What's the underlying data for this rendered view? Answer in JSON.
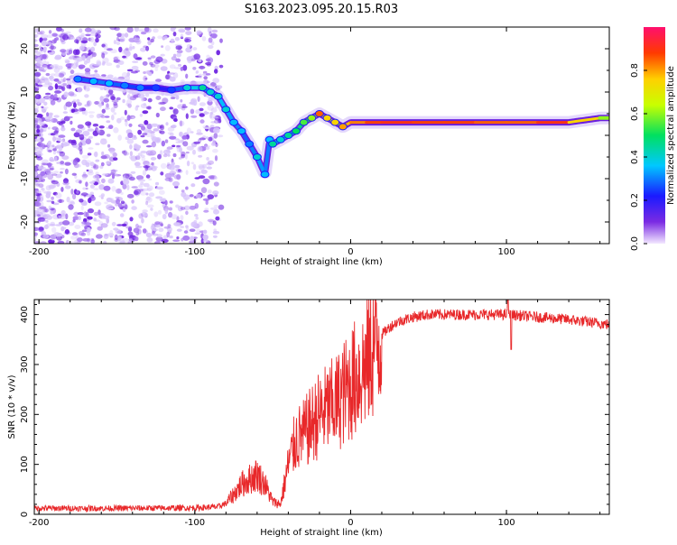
{
  "title": "S163.2023.095.20.15.R03",
  "colors": {
    "snr_line": "#e8282a",
    "ridge_high": "#e8282a",
    "scatter": "#7b2be3"
  },
  "chart_data": [
    {
      "type": "heatmap",
      "name": "spectrogram",
      "xlabel": "Height of straight line (km)",
      "ylabel": "Frequency (Hz)",
      "xlim": [
        -203,
        166
      ],
      "ylim": [
        -25,
        25
      ],
      "xticks": [
        -200,
        -100,
        0,
        100
      ],
      "yticks": [
        20,
        10,
        0,
        -10,
        -20
      ],
      "xtick_labels": [
        "-200",
        "-100",
        "0",
        "100"
      ],
      "ytick_labels": [
        "20",
        "10",
        "0",
        "-10",
        "-20"
      ],
      "ridge": {
        "x": [
          -175,
          -165,
          -155,
          -145,
          -135,
          -125,
          -115,
          -105,
          -95,
          -90,
          -85,
          -80,
          -75,
          -70,
          -65,
          -60,
          -55,
          -52,
          -50,
          -45,
          -40,
          -35,
          -30,
          -25,
          -20,
          -15,
          -10,
          -5,
          0,
          10,
          20,
          40,
          60,
          80,
          100,
          120,
          140,
          160,
          166
        ],
        "y": [
          13,
          12.5,
          12,
          11.5,
          11,
          11,
          10.5,
          11,
          11,
          10,
          9,
          6,
          3,
          1,
          -2,
          -5,
          -9,
          -1,
          -2,
          -1,
          0,
          1,
          3,
          4,
          5,
          4,
          3,
          2,
          3,
          3,
          3,
          3,
          3,
          3,
          3,
          3,
          3,
          4,
          4
        ],
        "amplitude": [
          0.25,
          0.3,
          0.3,
          0.25,
          0.25,
          0.2,
          0.2,
          0.35,
          0.4,
          0.35,
          0.35,
          0.35,
          0.3,
          0.3,
          0.25,
          0.35,
          0.3,
          0.3,
          0.4,
          0.35,
          0.4,
          0.45,
          0.5,
          0.55,
          0.8,
          0.7,
          0.7,
          0.75,
          0.8,
          0.85,
          0.9,
          0.9,
          0.85,
          0.9,
          0.8,
          0.9,
          0.9,
          0.6,
          0.6
        ]
      },
      "colorbar": {
        "label": "Normalized spectral amplitude",
        "range": [
          0,
          1
        ],
        "ticks": [
          0.0,
          0.2,
          0.4,
          0.6,
          0.8
        ],
        "tick_labels": [
          "0.0",
          "0.2",
          "0.4",
          "0.6",
          "0.8"
        ]
      }
    },
    {
      "type": "line",
      "name": "snr",
      "xlabel": "Height of straight line (km)",
      "ylabel": "SNR (10 * v/v)",
      "xlim": [
        -203,
        166
      ],
      "ylim": [
        0,
        430
      ],
      "xticks": [
        -200,
        -100,
        0,
        100
      ],
      "yticks": [
        0,
        100,
        200,
        300,
        400
      ],
      "xtick_labels": [
        "-200",
        "-100",
        "0",
        "100"
      ],
      "ytick_labels": [
        "0",
        "100",
        "200",
        "300",
        "400"
      ],
      "trend": {
        "x": [
          -203,
          -150,
          -100,
          -85,
          -80,
          -75,
          -70,
          -65,
          -60,
          -55,
          -50,
          -45,
          -40,
          -35,
          -30,
          -25,
          -20,
          -15,
          -10,
          -5,
          0,
          5,
          10,
          15,
          20,
          25,
          30,
          40,
          50,
          60,
          80,
          100,
          120,
          140,
          166
        ],
        "y": [
          12,
          12,
          13,
          15,
          22,
          40,
          60,
          70,
          80,
          60,
          25,
          20,
          100,
          150,
          160,
          180,
          200,
          210,
          220,
          240,
          260,
          280,
          300,
          340,
          360,
          375,
          385,
          395,
          400,
          400,
          400,
          400,
          395,
          390,
          380
        ]
      }
    }
  ]
}
